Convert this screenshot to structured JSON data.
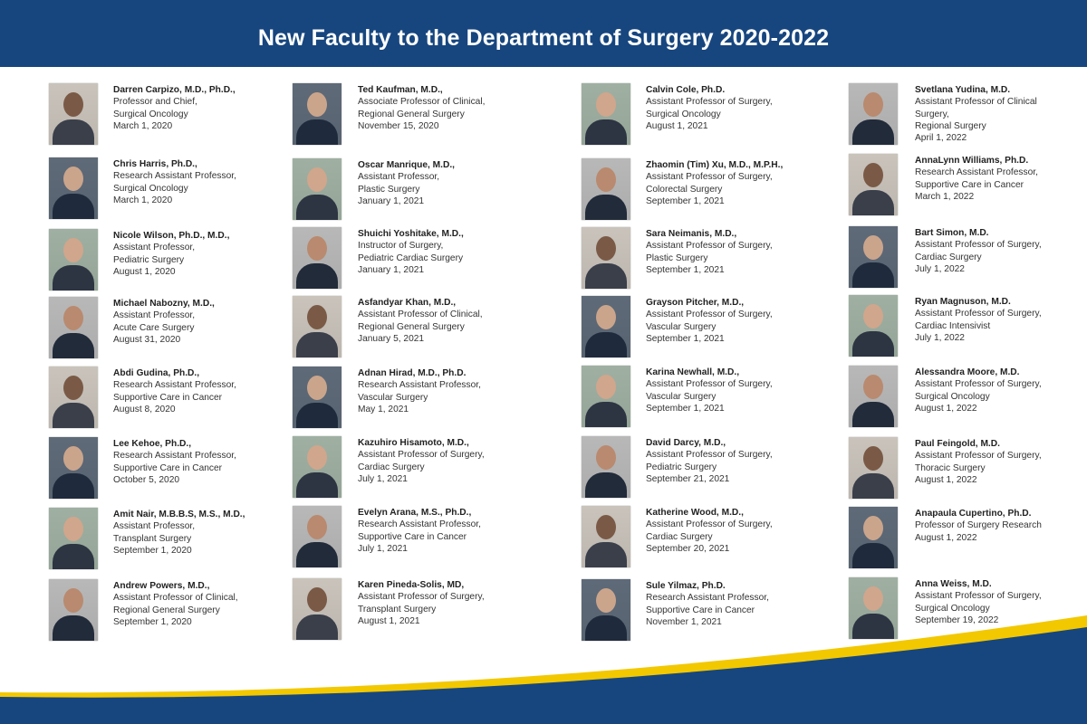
{
  "header": {
    "title": "New Faculty to the Department of Surgery 2020-2022"
  },
  "colors": {
    "brand_blue": "#17467f",
    "accent_gold": "#f2c800"
  },
  "columns": [
    [
      {
        "name": "Darren Carpizo, M.D., Ph.D.,",
        "lines": [
          "Professor and Chief,",
          "Surgical  Oncology"
        ],
        "date": "March 1, 2020"
      },
      {
        "name": "Chris Harris, Ph.D.,",
        "lines": [
          "Research Assistant Professor,",
          "Surgical  Oncology"
        ],
        "date": "March 1, 2020"
      },
      {
        "name": "Nicole Wilson, Ph.D., M.D.,",
        "lines": [
          "Assistant Professor,",
          "Pediatric Surgery"
        ],
        "date": "August 1, 2020"
      },
      {
        "name": "Michael Nabozny, M.D.,",
        "lines": [
          "Assistant Professor,",
          "Acute Care Surgery"
        ],
        "date": "August 31, 2020"
      },
      {
        "name": "Abdi Gudina, Ph.D.,",
        "lines": [
          "Research Assistant Professor,",
          "Supportive Care in Cancer"
        ],
        "date": "August 8, 2020"
      },
      {
        "name": "Lee Kehoe, Ph.D.,",
        "lines": [
          "Research Assistant Professor,",
          "Supportive Care in Cancer"
        ],
        "date": "October 5, 2020"
      },
      {
        "name": "Amit Nair, M.B.B.S, M.S., M.D.,",
        "lines": [
          "Assistant Professor,",
          "Transplant Surgery"
        ],
        "date": "September 1, 2020"
      },
      {
        "name": "Andrew Powers, M.D.,",
        "lines": [
          "Assistant Professor of Clinical,",
          "Regional General Surgery"
        ],
        "date": "September 1, 2020"
      }
    ],
    [
      {
        "name": "Ted Kaufman, M.D.,",
        "lines": [
          "Associate Professor of Clinical,",
          "Regional General Surgery"
        ],
        "date": "November 15, 2020"
      },
      {
        "name": "Oscar Manrique, M.D.,",
        "lines": [
          "Assistant Professor,",
          "Plastic Surgery"
        ],
        "date": "January 1, 2021"
      },
      {
        "name": "Shuichi Yoshitake, M.D.,",
        "lines": [
          "Instructor of Surgery,",
          "Pediatric Cardiac Surgery"
        ],
        "date": "January 1, 2021"
      },
      {
        "name": "Asfandyar Khan, M.D.,",
        "lines": [
          "Assistant Professor of Clinical,",
          "Regional General Surgery"
        ],
        "date": "January 5, 2021"
      },
      {
        "name": "Adnan Hirad, M.D., Ph.D.",
        "lines": [
          "Research Assistant Professor,",
          "Vascular Surgery"
        ],
        "date": "May 1, 2021"
      },
      {
        "name": "Kazuhiro Hisamoto, M.D.,",
        "lines": [
          "Assistant Professor of Surgery,",
          "Cardiac Surgery"
        ],
        "date": "July 1, 2021"
      },
      {
        "name": "Evelyn Arana, M.S., Ph.D.,",
        "lines": [
          "Research Assistant Professor,",
          "Supportive Care in Cancer"
        ],
        "date": "July 1, 2021"
      },
      {
        "name": "Karen Pineda-Solis, MD,",
        "lines": [
          "Assistant Professor of Surgery,",
          "Transplant Surgery"
        ],
        "date": "August 1, 2021"
      }
    ],
    [
      {
        "name": "Calvin Cole, Ph.D.",
        "lines": [
          "Assistant Professor of Surgery,",
          "Surgical Oncology"
        ],
        "date": "August 1, 2021"
      },
      {
        "name": "Zhaomin (Tim) Xu, M.D., M.P.H.,",
        "lines": [
          "Assistant Professor of Surgery,",
          "Colorectal Surgery"
        ],
        "date": "September 1, 2021"
      },
      {
        "name": "Sara Neimanis, M.D.,",
        "lines": [
          "Assistant Professor of Surgery,",
          "Plastic Surgery"
        ],
        "date": "September 1, 2021"
      },
      {
        "name": "Grayson Pitcher, M.D.,",
        "lines": [
          "Assistant Professor of Surgery,",
          "Vascular Surgery"
        ],
        "date": "September 1, 2021"
      },
      {
        "name": "Karina Newhall, M.D.,",
        "lines": [
          "Assistant Professor of Surgery,",
          "Vascular Surgery"
        ],
        "date": "September 1, 2021"
      },
      {
        "name": "David Darcy, M.D.,",
        "lines": [
          "Assistant Professor of Surgery,",
          "Pediatric Surgery"
        ],
        "date": "September 21, 2021"
      },
      {
        "name": "Katherine Wood, M.D.,",
        "lines": [
          "Assistant Professor of Surgery,",
          "Cardiac Surgery"
        ],
        "date": "September 20, 2021"
      },
      {
        "name": "Sule Yilmaz, Ph.D.",
        "lines": [
          "Research Assistant Professor,",
          "Supportive Care in Cancer"
        ],
        "date": "November 1, 2021"
      }
    ],
    [
      {
        "name": "Svetlana Yudina, M.D.",
        "lines": [
          "Assistant Professor of Clinical",
          "Surgery,",
          "Regional Surgery"
        ],
        "date": "April 1, 2022"
      },
      {
        "name": "AnnaLynn Williams, Ph.D.",
        "lines": [
          "Research Assistant Professor,",
          "Supportive Care in Cancer"
        ],
        "date": "March 1, 2022"
      },
      {
        "name": "Bart Simon, M.D.",
        "lines": [
          "Assistant Professor of Surgery,",
          "Cardiac Surgery"
        ],
        "date": "July 1, 2022"
      },
      {
        "name": "Ryan Magnuson, M.D.",
        "lines": [
          "Assistant Professor of Surgery,",
          "Cardiac Intensivist"
        ],
        "date": "July 1, 2022"
      },
      {
        "name": "Alessandra Moore, M.D.",
        "lines": [
          "Assistant Professor of Surgery,",
          "Surgical Oncology"
        ],
        "date": "August 1, 2022"
      },
      {
        "name": "Paul Feingold, M.D.",
        "lines": [
          "Assistant Professor of Surgery,",
          "Thoracic Surgery"
        ],
        "date": "August 1, 2022"
      },
      {
        "name": "Anapaula Cupertino, Ph.D.",
        "lines": [
          "Professor of Surgery Research"
        ],
        "date": "August 1, 2022"
      },
      {
        "name": "Anna Weiss, M.D.",
        "lines": [
          "Assistant Professor of Surgery,",
          "Surgical Oncology"
        ],
        "date": "September 19, 2022"
      }
    ]
  ]
}
